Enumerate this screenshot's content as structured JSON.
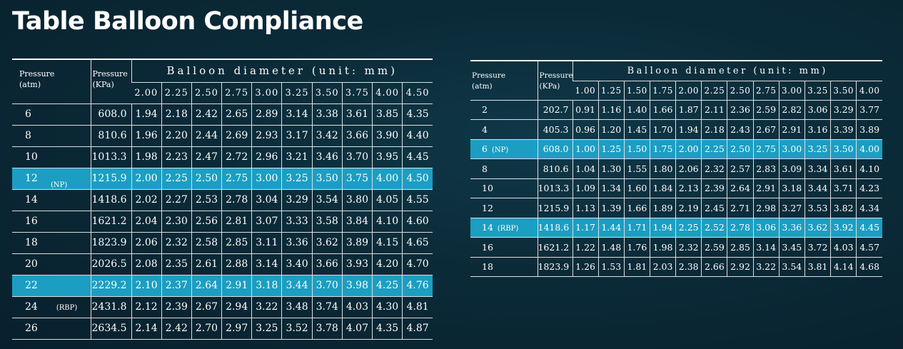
{
  "title": "Table Balloon Compliance",
  "colors": {
    "highlight": "#1b9ec2",
    "background": "#0b2a38",
    "text": "#ffffff"
  },
  "left_table": {
    "header_pressure_atm": [
      "Pressure",
      "(atm)"
    ],
    "header_pressure_kpa": [
      "Pressure",
      "(KPa)"
    ],
    "header_diameter": "Balloon diameter (unit: mm)",
    "diameters": [
      "2.00",
      "2.25",
      "2.50",
      "2.75",
      "3.00",
      "3.25",
      "3.50",
      "3.75",
      "4.00",
      "4.50"
    ],
    "rows": [
      {
        "atm": "6",
        "tag": "",
        "kpa": "608.0",
        "values": [
          "1.94",
          "2.18",
          "2.42",
          "2.65",
          "2.89",
          "3.14",
          "3.38",
          "3.61",
          "3.85",
          "4.35"
        ],
        "highlight": false
      },
      {
        "atm": "8",
        "tag": "",
        "kpa": "810.6",
        "values": [
          "1.96",
          "2.20",
          "2.44",
          "2.69",
          "2.93",
          "3.17",
          "3.42",
          "3.66",
          "3.90",
          "4.40"
        ],
        "highlight": false
      },
      {
        "atm": "10",
        "tag": "",
        "kpa": "1013.3",
        "values": [
          "1.98",
          "2.23",
          "2.47",
          "2.72",
          "2.96",
          "3.21",
          "3.46",
          "3.70",
          "3.95",
          "4.45"
        ],
        "highlight": false
      },
      {
        "atm": "12",
        "tag": "(NP)",
        "kpa": "1215.9",
        "values": [
          "2.00",
          "2.25",
          "2.50",
          "2.75",
          "3.00",
          "3.25",
          "3.50",
          "3.75",
          "4.00",
          "4.50"
        ],
        "highlight": true
      },
      {
        "atm": "14",
        "tag": "",
        "kpa": "1418.6",
        "values": [
          "2.02",
          "2.27",
          "2.53",
          "2.78",
          "3.04",
          "3.29",
          "3.54",
          "3.80",
          "4.05",
          "4.55"
        ],
        "highlight": false
      },
      {
        "atm": "16",
        "tag": "",
        "kpa": "1621.2",
        "values": [
          "2.04",
          "2.30",
          "2.56",
          "2.81",
          "3.07",
          "3.33",
          "3.58",
          "3.84",
          "4.10",
          "4.60"
        ],
        "highlight": false
      },
      {
        "atm": "18",
        "tag": "",
        "kpa": "1823.9",
        "values": [
          "2.06",
          "2.32",
          "2.58",
          "2.85",
          "3.11",
          "3.36",
          "3.62",
          "3.89",
          "4.15",
          "4.65"
        ],
        "highlight": false
      },
      {
        "atm": "20",
        "tag": "",
        "kpa": "2026.5",
        "values": [
          "2.08",
          "2.35",
          "2.61",
          "2.88",
          "3.14",
          "3.40",
          "3.66",
          "3.93",
          "4.20",
          "4.70"
        ],
        "highlight": false
      },
      {
        "atm": "22",
        "tag": "",
        "kpa": "2229.2",
        "values": [
          "2.10",
          "2.37",
          "2.64",
          "2.91",
          "3.18",
          "3.44",
          "3.70",
          "3.98",
          "4.25",
          "4.76"
        ],
        "highlight": true
      },
      {
        "atm": "24",
        "tag": "(RBP)",
        "kpa": "2431.8",
        "values": [
          "2.12",
          "2.39",
          "2.67",
          "2.94",
          "3.22",
          "3.48",
          "3.74",
          "4.03",
          "4.30",
          "4.81"
        ],
        "highlight": false
      },
      {
        "atm": "26",
        "tag": "",
        "kpa": "2634.5",
        "values": [
          "2.14",
          "2.42",
          "2.70",
          "2.97",
          "3.25",
          "3.52",
          "3.78",
          "4.07",
          "4.35",
          "4.87"
        ],
        "highlight": false
      }
    ]
  },
  "right_table": {
    "header_pressure_atm": [
      "Pressure",
      "(atm)"
    ],
    "header_pressure_kpa": [
      "Pressure",
      "(KPa)"
    ],
    "header_diameter": "Balloon diameter (unit: mm)",
    "diameters": [
      "1.00",
      "1.25",
      "1.50",
      "1.75",
      "2.00",
      "2.25",
      "2.50",
      "2.75",
      "3.00",
      "3.25",
      "3.50",
      "4.00"
    ],
    "rows": [
      {
        "atm": "2",
        "tag": "",
        "kpa": "202.7",
        "values": [
          "0.91",
          "1.16",
          "1.40",
          "1.66",
          "1.87",
          "2.11",
          "2.36",
          "2.59",
          "2.82",
          "3.06",
          "3.29",
          "3.77"
        ],
        "highlight": false
      },
      {
        "atm": "4",
        "tag": "",
        "kpa": "405.3",
        "values": [
          "0.96",
          "1.20",
          "1.45",
          "1.70",
          "1.94",
          "2.18",
          "2.43",
          "2.67",
          "2.91",
          "3.16",
          "3.39",
          "3.89"
        ],
        "highlight": false
      },
      {
        "atm": "6",
        "tag": "(NP)",
        "kpa": "608.0",
        "values": [
          "1.00",
          "1.25",
          "1.50",
          "1.75",
          "2.00",
          "2.25",
          "2.50",
          "2.75",
          "3.00",
          "3.25",
          "3.50",
          "4.00"
        ],
        "highlight": true
      },
      {
        "atm": "8",
        "tag": "",
        "kpa": "810.6",
        "values": [
          "1.04",
          "1.30",
          "1.55",
          "1.80",
          "2.06",
          "2.32",
          "2.57",
          "2.83",
          "3.09",
          "3.34",
          "3.61",
          "4.10"
        ],
        "highlight": false
      },
      {
        "atm": "10",
        "tag": "",
        "kpa": "1013.3",
        "values": [
          "1.09",
          "1.34",
          "1.60",
          "1.84",
          "2.13",
          "2.39",
          "2.64",
          "2.91",
          "3.18",
          "3.44",
          "3.71",
          "4.23"
        ],
        "highlight": false
      },
      {
        "atm": "12",
        "tag": "",
        "kpa": "1215.9",
        "values": [
          "1.13",
          "1.39",
          "1.66",
          "1.89",
          "2.19",
          "2.45",
          "2.71",
          "2.98",
          "3.27",
          "3.53",
          "3.82",
          "4.34"
        ],
        "highlight": false
      },
      {
        "atm": "14",
        "tag": "(RBP)",
        "kpa": "1418.6",
        "values": [
          "1.17",
          "1.44",
          "1.71",
          "1.94",
          "2.25",
          "2.52",
          "2.78",
          "3.06",
          "3.36",
          "3.62",
          "3.92",
          "4.45"
        ],
        "highlight": true
      },
      {
        "atm": "16",
        "tag": "",
        "kpa": "1621.2",
        "values": [
          "1.22",
          "1.48",
          "1.76",
          "1.98",
          "2.32",
          "2.59",
          "2.85",
          "3.14",
          "3.45",
          "3.72",
          "4.03",
          "4.57"
        ],
        "highlight": false
      },
      {
        "atm": "18",
        "tag": "",
        "kpa": "1823.9",
        "values": [
          "1.26",
          "1.53",
          "1.81",
          "2.03",
          "2.38",
          "2.66",
          "2.92",
          "3.22",
          "3.54",
          "3.81",
          "4.14",
          "4.68"
        ],
        "highlight": false
      }
    ]
  }
}
